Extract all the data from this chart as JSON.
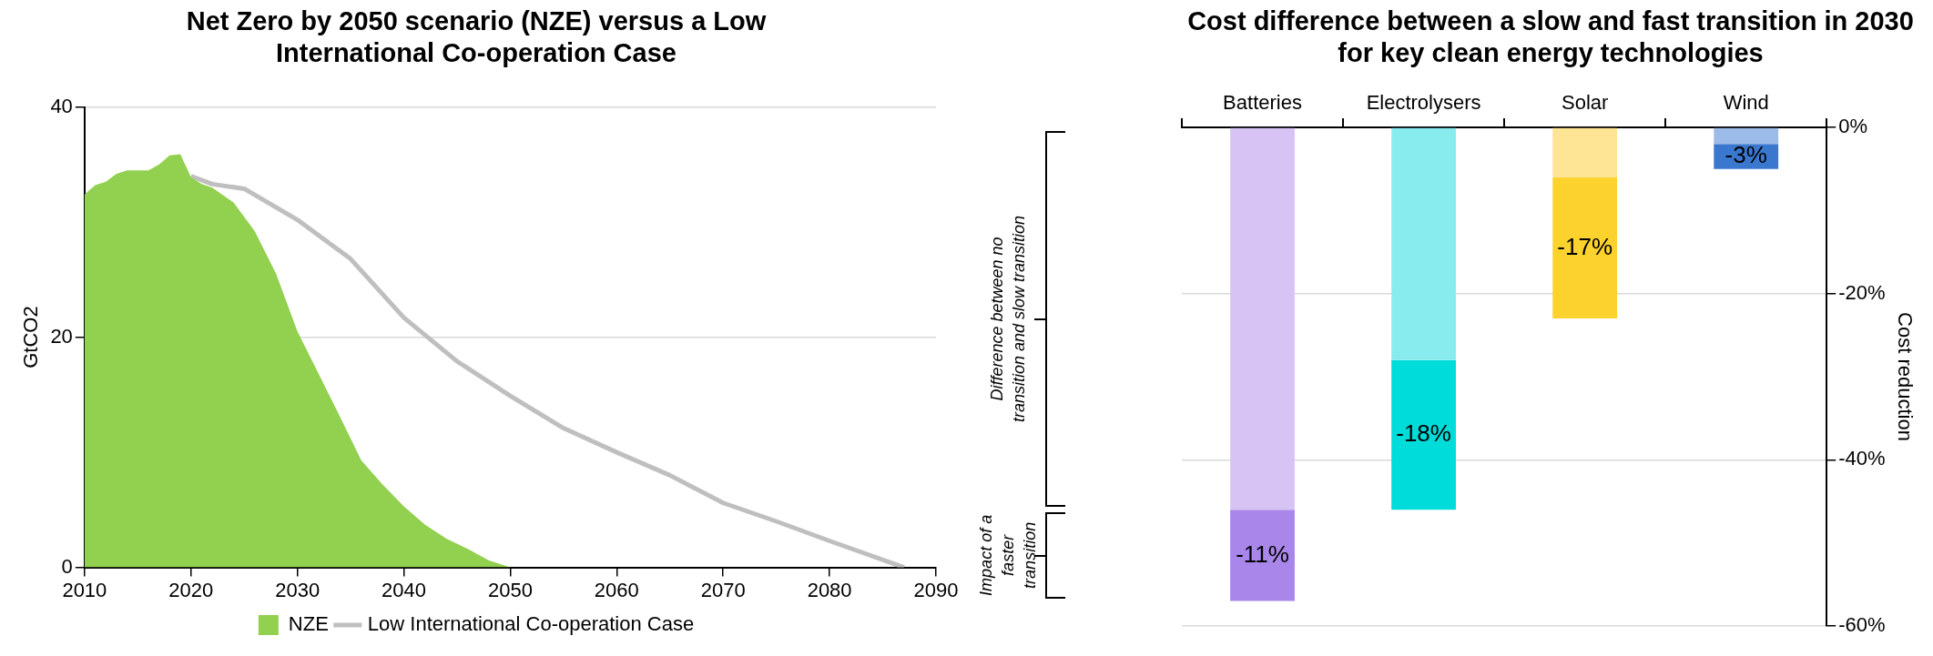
{
  "chart_data": [
    {
      "type": "area",
      "title": "Net Zero by 2050 scenario (NZE) versus a Low International Co-operation Case",
      "ylabel": "GtCO2",
      "xlim": [
        2010,
        2090
      ],
      "xticks": [
        2010,
        2020,
        2030,
        2040,
        2050,
        2060,
        2070,
        2080,
        2090
      ],
      "ylim": [
        0,
        40
      ],
      "yticks": [
        0,
        20,
        40
      ],
      "grid": "y",
      "legend": "bottom",
      "series": [
        {
          "name": "NZE",
          "type": "area",
          "color": "#92d050",
          "x": [
            2010,
            2011,
            2012,
            2013,
            2014,
            2016,
            2017,
            2018,
            2019,
            2020,
            2021,
            2022,
            2024,
            2026,
            2028,
            2030,
            2032,
            2034,
            2036,
            2038,
            2040,
            2042,
            2044,
            2046,
            2048,
            2050
          ],
          "values": [
            32.4,
            33.2,
            33.5,
            34.2,
            34.5,
            34.5,
            35.0,
            35.8,
            35.9,
            33.9,
            33.3,
            33.0,
            31.7,
            29.2,
            25.5,
            20.5,
            16.8,
            13.1,
            9.3,
            7.2,
            5.3,
            3.7,
            2.5,
            1.6,
            0.6,
            0
          ]
        },
        {
          "name": "Low International Co-operation Case",
          "type": "line",
          "color": "#bfbfbf",
          "x": [
            2020,
            2022,
            2025,
            2030,
            2035,
            2040,
            2045,
            2050,
            2055,
            2060,
            2065,
            2070,
            2075,
            2080,
            2087
          ],
          "values": [
            34.0,
            33.3,
            32.9,
            30.2,
            26.8,
            21.7,
            17.9,
            14.9,
            12.1,
            10.0,
            8.0,
            5.6,
            4.0,
            2.3,
            0
          ]
        }
      ]
    },
    {
      "type": "bar",
      "stacked": true,
      "title": "Cost difference between a slow and fast transition in 2030 for key clean energy technologies",
      "y2label": "Cost reduction",
      "categories": [
        "Batteries",
        "Electrolysers",
        "Solar",
        "Wind"
      ],
      "y2lim": [
        -60,
        0
      ],
      "y2ticks": [
        {
          "value": 0,
          "label": "0%"
        },
        {
          "value": -20,
          "label": "-20%"
        },
        {
          "value": -40,
          "label": "-40%"
        },
        {
          "value": -60,
          "label": "-60%"
        }
      ],
      "grid": "y",
      "annotations": [
        "Difference between no transition and slow transition",
        "Impact of a faster transition"
      ],
      "series": [
        {
          "axis": "y2",
          "colors": [
            "#d8c4f4",
            "#88ecee",
            "#fde595",
            "#9dbbe8"
          ],
          "values": [
            -46,
            -28,
            -6,
            -2
          ]
        },
        {
          "axis": "y2",
          "colors": [
            "#a886ea",
            "#00dcda",
            "#fcd22e",
            "#3a78cf"
          ],
          "values": [
            -11,
            -18,
            -17,
            -3
          ],
          "value_labels": [
            "-11%",
            "-18%",
            "-17%",
            "-3%"
          ]
        }
      ]
    }
  ]
}
